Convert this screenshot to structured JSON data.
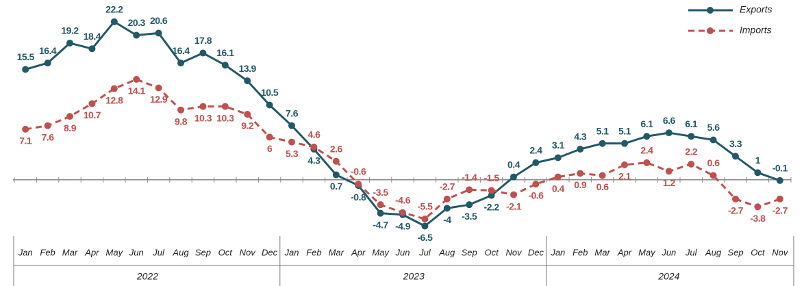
{
  "chart_data": {
    "type": "line",
    "category_groups": [
      {
        "label": "2022",
        "categories": [
          "Jan",
          "Feb",
          "Mar",
          "Apr",
          "May",
          "Jun",
          "Jul",
          "Aug",
          "Sep",
          "Oct",
          "Nov",
          "Dec"
        ]
      },
      {
        "label": "2023",
        "categories": [
          "Jan",
          "Feb",
          "Mar",
          "Apr",
          "May",
          "Jun",
          "Jul",
          "Aug",
          "Sep",
          "Oct",
          "Nov",
          "Dec"
        ]
      },
      {
        "label": "2024",
        "categories": [
          "Jan",
          "Feb",
          "Mar",
          "Apr",
          "May",
          "Jun",
          "Jul",
          "Aug",
          "Sep",
          "Oct",
          "Nov"
        ]
      }
    ],
    "series": [
      {
        "name": "Exports",
        "color": "#215968",
        "dash": false,
        "values": [
          15.5,
          16.4,
          19.2,
          18.4,
          22.2,
          20.3,
          20.6,
          16.4,
          17.8,
          16.1,
          13.9,
          10.5,
          7.6,
          4.3,
          0.7,
          -0.8,
          -4.7,
          -4.9,
          -6.5,
          -4.0,
          -3.5,
          -2.2,
          0.4,
          2.4,
          3.1,
          4.3,
          5.1,
          5.1,
          6.1,
          6.6,
          6.1,
          5.6,
          3.3,
          1.0,
          -0.1
        ]
      },
      {
        "name": "Imports",
        "color": "#c0504d",
        "dash": true,
        "values": [
          7.1,
          7.6,
          8.9,
          10.7,
          12.8,
          14.1,
          12.9,
          9.8,
          10.3,
          10.3,
          9.2,
          6.0,
          5.3,
          4.6,
          2.6,
          -0.6,
          -3.5,
          -4.6,
          -5.5,
          -2.7,
          -1.4,
          -1.5,
          -2.1,
          -0.6,
          0.4,
          0.9,
          0.6,
          2.1,
          2.4,
          1.2,
          2.2,
          0.6,
          -2.7,
          -3.8,
          -2.7
        ]
      }
    ],
    "ylim": [
      -8,
      24
    ],
    "legend": "top-right"
  }
}
